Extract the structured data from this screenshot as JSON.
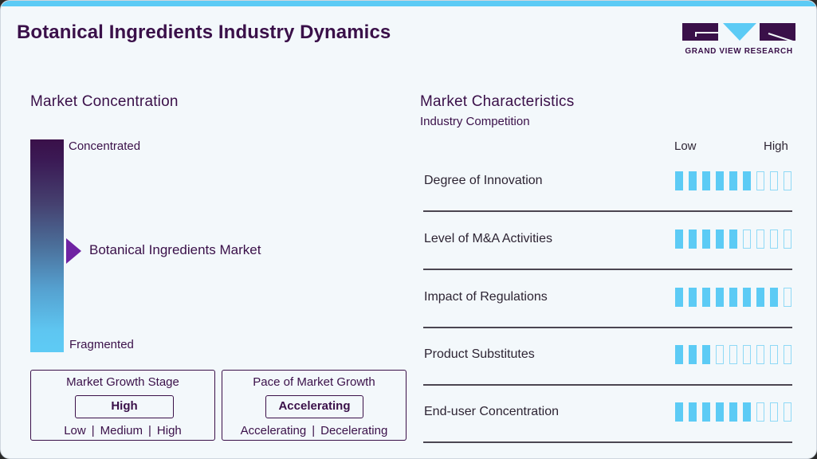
{
  "header": {
    "title": "Botanical Ingredients Industry Dynamics",
    "logo_text": "GRAND VIEW RESEARCH"
  },
  "colors": {
    "accent_blue": "#5ccbf5",
    "brand_purple": "#3a1049",
    "pointer_purple": "#6f23a3",
    "background": "#f3f8fb"
  },
  "market_concentration": {
    "title": "Market Concentration",
    "top_label": "Concentrated",
    "bottom_label": "Fragmented",
    "pointer_label": "Botanical Ingredients Market",
    "pointer_icon": "triangle-right-icon"
  },
  "growth_stage": {
    "title": "Market Growth Stage",
    "value": "High",
    "options": [
      "Low",
      "Medium",
      "High"
    ],
    "separator": "|"
  },
  "growth_pace": {
    "title": "Pace of Market Growth",
    "value": "Accelerating",
    "options": [
      "Accelerating",
      "Decelerating"
    ],
    "separator": "|"
  },
  "market_characteristics": {
    "title": "Market Characteristics",
    "subtitle": "Industry Competition",
    "scale_low": "Low",
    "scale_high": "High",
    "total_bars": 9,
    "rows": [
      {
        "label": "Degree of Innovation",
        "filled": 6
      },
      {
        "label": "Level of M&A Activities",
        "filled": 5
      },
      {
        "label": "Impact of Regulations",
        "filled": 8
      },
      {
        "label": "Product Substitutes",
        "filled": 3
      },
      {
        "label": "End-user Concentration",
        "filled": 6
      }
    ]
  }
}
